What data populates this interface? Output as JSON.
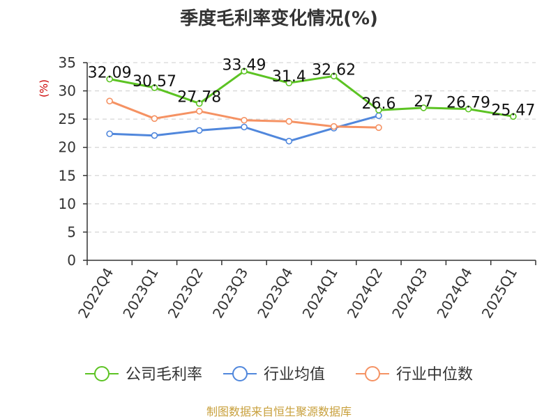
{
  "title": "季度毛利率变化情况(%)",
  "source": "制图数据来自恒生聚源数据库",
  "chart_data": {
    "type": "line",
    "ylabel": "(%)",
    "ylim": [
      0,
      35
    ],
    "yticks": [
      0,
      5,
      10,
      15,
      20,
      25,
      30,
      35
    ],
    "grid": true,
    "legend_position": "bottom",
    "categories": [
      "2022Q4",
      "2023Q1",
      "2023Q2",
      "2023Q3",
      "2023Q4",
      "2024Q1",
      "2024Q2",
      "2024Q3",
      "2024Q4",
      "2025Q1"
    ],
    "series": [
      {
        "name": "公司毛利率",
        "color": "#5cc323",
        "labels": true,
        "values": [
          32.09,
          30.57,
          27.78,
          33.49,
          31.4,
          32.62,
          26.6,
          27,
          26.79,
          25.47
        ]
      },
      {
        "name": "行业均值",
        "color": "#5087dc",
        "labels": false,
        "values": [
          22.4,
          22.1,
          23.0,
          23.6,
          21.1,
          23.4,
          25.6,
          null,
          null,
          null
        ]
      },
      {
        "name": "行业中位数",
        "color": "#f59263",
        "labels": false,
        "values": [
          28.2,
          25.1,
          26.4,
          24.8,
          24.6,
          23.7,
          23.5,
          null,
          null,
          null
        ]
      }
    ]
  }
}
